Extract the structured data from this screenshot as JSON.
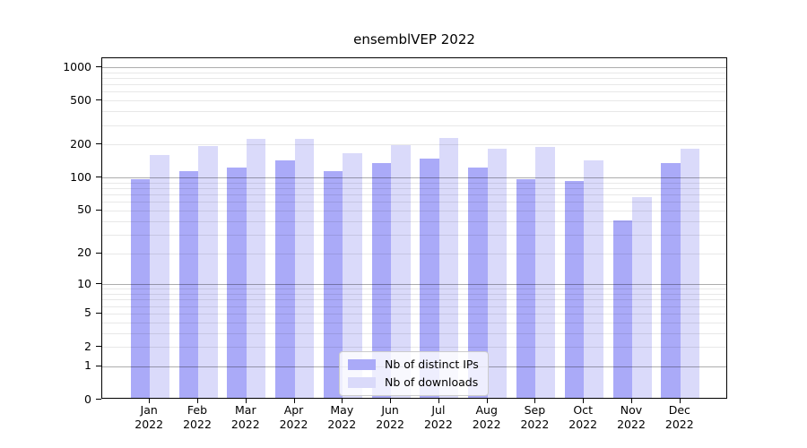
{
  "chart_data": {
    "type": "bar",
    "title": "ensemblVEP 2022",
    "scale": "log1p",
    "categories": [
      "Jan",
      "Feb",
      "Mar",
      "Apr",
      "May",
      "Jun",
      "Jul",
      "Aug",
      "Sep",
      "Oct",
      "Nov",
      "Dec"
    ],
    "year": "2022",
    "series": [
      {
        "name": "Nb of distinct IPs",
        "color": "#aaaaf8",
        "values": [
          94,
          110,
          120,
          138,
          110,
          130,
          143,
          120,
          93,
          90,
          39,
          130
        ]
      },
      {
        "name": "Nb of downloads",
        "color": "#dadafa",
        "values": [
          155,
          188,
          215,
          215,
          160,
          190,
          220,
          176,
          184,
          137,
          64,
          178
        ]
      }
    ],
    "y_ticks": [
      0,
      1,
      2,
      5,
      10,
      20,
      50,
      100,
      200,
      500,
      1000
    ],
    "ylim": [
      0,
      1190
    ],
    "grid": "on",
    "legend_position": "lower center"
  },
  "colors": {
    "bar_distinct_ips": "#aaaaf8",
    "bar_downloads": "#dadafa",
    "major_grid": "rgba(0,0,0,0.32)",
    "minor_grid": "rgba(0,0,0,0.09)",
    "axis": "#000000",
    "text": "#000000"
  }
}
